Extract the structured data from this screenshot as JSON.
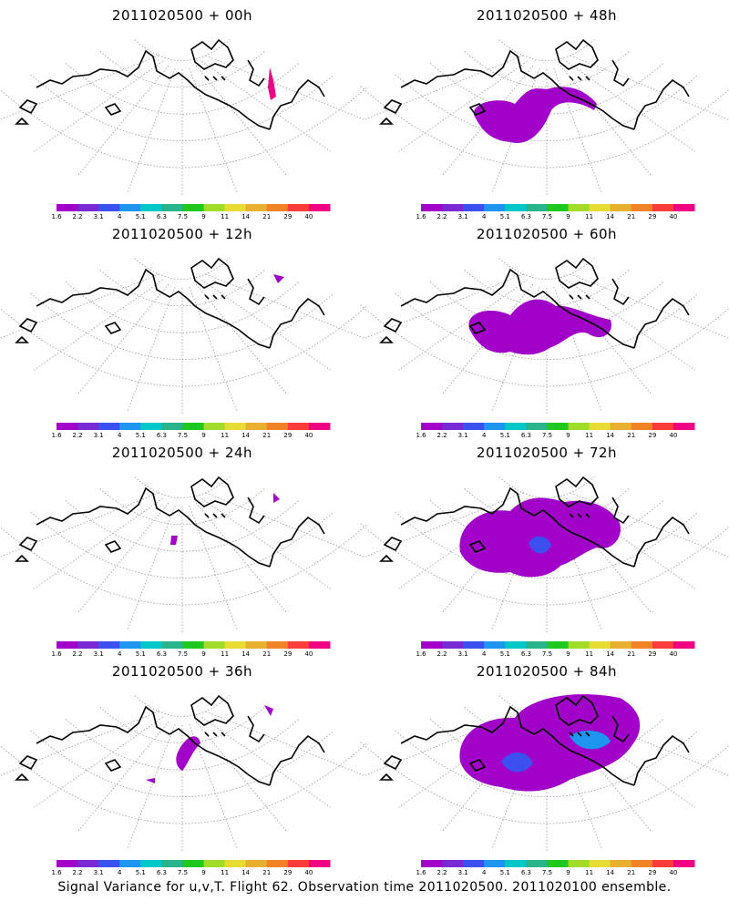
{
  "panels": [
    {
      "title": "2011020500 + 00h",
      "lead": "00h"
    },
    {
      "title": "2011020500 + 48h",
      "lead": "48h"
    },
    {
      "title": "2011020500 + 12h",
      "lead": "12h"
    },
    {
      "title": "2011020500 + 60h",
      "lead": "60h"
    },
    {
      "title": "2011020500 + 24h",
      "lead": "24h"
    },
    {
      "title": "2011020500 + 72h",
      "lead": "72h"
    },
    {
      "title": "2011020500 + 36h",
      "lead": "36h"
    },
    {
      "title": "2011020500 + 84h",
      "lead": "84h"
    }
  ],
  "colorbar": {
    "labels": [
      "1.6",
      "2.2",
      "3.1",
      "4",
      "5.1",
      "6.3",
      "7.5",
      "9",
      "11",
      "14",
      "21",
      "29",
      "40"
    ],
    "colors": [
      "#a000c8",
      "#7a2ad4",
      "#3c50f0",
      "#1e96f0",
      "#00c8c8",
      "#2ab48c",
      "#1ec81e",
      "#a0dc28",
      "#e6dc32",
      "#e6af2d",
      "#f08228",
      "#fa3c3c",
      "#f00082"
    ]
  },
  "caption": "Signal Variance for u,v,T. Flight 62. Observation time 2011020500. 2011020100 ensemble."
}
